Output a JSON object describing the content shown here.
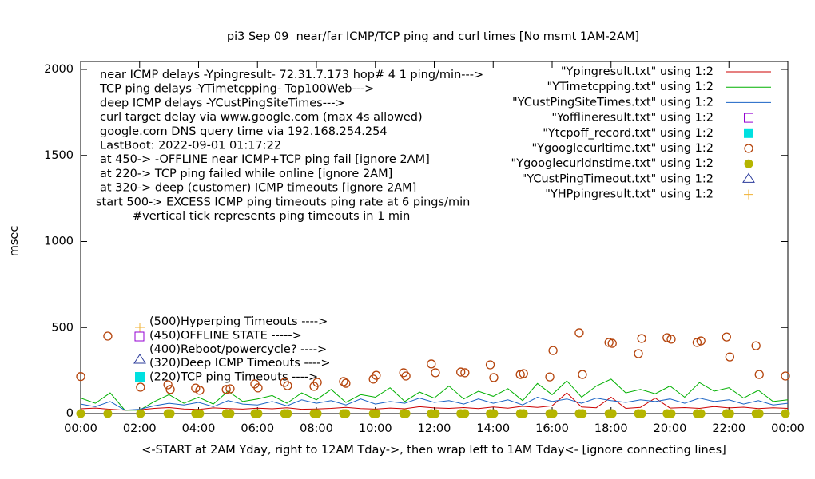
{
  "chart_data": {
    "type": "line",
    "title": "pi3 Sep 09  near/far ICMP/TCP ping and curl times [No msmt 1AM-2AM]",
    "y_label": "msec",
    "x_label": "<-START at 2AM Yday, right to 12AM Tday->, then wrap left to 1AM Tday<- [ignore connecting lines]",
    "xlim": [
      0,
      24
    ],
    "xticks": [
      {
        "value": 0,
        "label": "00:00"
      },
      {
        "value": 2,
        "label": "02:00"
      },
      {
        "value": 4,
        "label": "04:00"
      },
      {
        "value": 6,
        "label": "06:00"
      },
      {
        "value": 8,
        "label": "08:00"
      },
      {
        "value": 10,
        "label": "10:00"
      },
      {
        "value": 12,
        "label": "12:00"
      },
      {
        "value": 14,
        "label": "14:00"
      },
      {
        "value": 16,
        "label": "16:00"
      },
      {
        "value": 18,
        "label": "18:00"
      },
      {
        "value": 20,
        "label": "20:00"
      },
      {
        "value": 22,
        "label": "22:00"
      },
      {
        "value": 24,
        "label": "00:00"
      }
    ],
    "ylim": [
      0,
      2000
    ],
    "yticks": [
      0,
      500,
      1000,
      1500,
      2000
    ],
    "annotations": [
      "near ICMP delays -Ypingresult- 72.31.7.173 hop# 4 1 ping/min--->",
      "TCP ping delays -YTimetcpping- Top100Web--->",
      "deep ICMP delays -YCustPingSiteTimes--->",
      "curl target delay via www.google.com (max 4s allowed)",
      "google.com DNS query time via 192.168.254.254",
      "LastBoot: 2022-09-01 01:17:22",
      "at 450-> -OFFLINE near ICMP+TCP ping fail [ignore 2AM]",
      "at 220-> TCP ping failed while online [ignore 2AM]",
      "at 320-> deep (customer) ICMP timeouts [ignore 2AM]",
      "start 500-> EXCESS ICMP ping timeouts ping rate at 6 pings/min",
      "#vertical tick represents ping timeouts in 1 min"
    ],
    "key_notes": [
      "(500)Hyperping Timeouts ---->",
      "(450)OFFLINE STATE ----->",
      "(400)Reboot/powercycle? ---->",
      "(320)Deep ICMP Timeouts ---->",
      "(220)TCP ping Timeouts ---->"
    ],
    "x": [
      0,
      0.5,
      1,
      1.5,
      2,
      2.5,
      3,
      3.5,
      4,
      4.5,
      5,
      5.5,
      6,
      6.5,
      7,
      7.5,
      8,
      8.5,
      9,
      9.5,
      10,
      10.5,
      11,
      11.5,
      12,
      12.5,
      13,
      13.5,
      14,
      14.5,
      15,
      15.5,
      16,
      16.5,
      17,
      17.5,
      18,
      18.5,
      19,
      19.5,
      20,
      20.5,
      21,
      21.5,
      22,
      22.5,
      23,
      23.5,
      24
    ],
    "series": [
      {
        "name": "\"Ypingresult.txt\" using 1:2",
        "color": "#cc0000",
        "marker": "line",
        "values": [
          28,
          32,
          25,
          20,
          22,
          30,
          35,
          27,
          24,
          33,
          29,
          26,
          31,
          28,
          34,
          25,
          27,
          30,
          36,
          29,
          26,
          32,
          28,
          40,
          33,
          30,
          35,
          29,
          38,
          31,
          42,
          36,
          45,
          120,
          38,
          34,
          95,
          30,
          36,
          90,
          32,
          35,
          30,
          41,
          33,
          37,
          29,
          34,
          30
        ]
      },
      {
        "name": "\"YTimetcpping.txt\" using 1:2",
        "color": "#00b000",
        "marker": "line",
        "values": [
          90,
          60,
          120,
          20,
          20,
          70,
          110,
          60,
          95,
          55,
          130,
          70,
          85,
          105,
          60,
          120,
          80,
          140,
          65,
          110,
          95,
          150,
          70,
          125,
          90,
          160,
          85,
          130,
          100,
          145,
          75,
          175,
          110,
          190,
          95,
          160,
          200,
          120,
          140,
          115,
          160,
          95,
          180,
          130,
          150,
          90,
          135,
          70,
          80
        ]
      },
      {
        "name": "\"YCustPingSiteTimes.txt\" using 1:2",
        "color": "#1a63c4",
        "marker": "line",
        "values": [
          55,
          40,
          70,
          20,
          25,
          45,
          60,
          50,
          65,
          40,
          75,
          55,
          50,
          70,
          45,
          80,
          60,
          75,
          50,
          85,
          55,
          70,
          60,
          90,
          65,
          75,
          55,
          85,
          60,
          80,
          50,
          95,
          70,
          85,
          60,
          90,
          75,
          65,
          80,
          70,
          85,
          60,
          90,
          70,
          80,
          55,
          75,
          50,
          60
        ]
      },
      {
        "name": "\"Yofflineresult.txt\" using 1:2",
        "color": "#9400d3",
        "marker": "open-square",
        "x": [],
        "values": []
      },
      {
        "name": "\"Ytcpoff_record.txt\" using 1:2",
        "color": "#00e0e0",
        "marker": "filled-square",
        "x": [],
        "values": []
      },
      {
        "name": "\"Ygooglecurltime.txt\" using 1:2",
        "color": "#b5440c",
        "marker": "open-circle",
        "x": [
          0,
          0.92,
          2.03,
          2.96,
          3.04,
          3.9,
          4.04,
          4.94,
          5.07,
          5.91,
          6.02,
          6.92,
          7.02,
          7.92,
          8.03,
          8.92,
          9.0,
          9.93,
          10.03,
          10.96,
          11.04,
          11.9,
          12.04,
          12.9,
          13.04,
          13.9,
          14.02,
          14.92,
          15.03,
          15.92,
          16.03,
          16.92,
          17.03,
          17.93,
          18.04,
          18.93,
          19.04,
          19.9,
          20.04,
          20.92,
          21.05,
          21.92,
          22.03,
          22.92,
          23.03,
          23.92
        ],
        "values": [
          215,
          450,
          153,
          167,
          140,
          148,
          135,
          140,
          144,
          172,
          149,
          181,
          162,
          158,
          181,
          186,
          176,
          200,
          222,
          237,
          218,
          288,
          237,
          241,
          237,
          283,
          209,
          227,
          232,
          213,
          366,
          469,
          227,
          413,
          408,
          348,
          436,
          441,
          432,
          413,
          422,
          445,
          329,
          394,
          227,
          218
        ]
      },
      {
        "name": "\"Ygooglecurldnstime.txt\" using 1:2",
        "color": "#b5b500",
        "marker": "filled-circle",
        "x": [
          0,
          0.92,
          2.03,
          2.96,
          3.04,
          3.9,
          4.04,
          4.94,
          5.07,
          5.91,
          6.02,
          6.92,
          7.02,
          7.92,
          8.03,
          8.92,
          9.0,
          9.93,
          10.03,
          10.96,
          11.04,
          11.9,
          12.04,
          12.9,
          13.04,
          13.9,
          14.02,
          14.92,
          15.03,
          15.92,
          16.03,
          16.92,
          17.03,
          17.93,
          18.04,
          18.93,
          19.04,
          19.9,
          20.04,
          20.92,
          21.05,
          21.92,
          22.03,
          22.92,
          23.03,
          23.92
        ],
        "values": [
          0,
          0,
          0,
          0,
          0,
          0,
          0,
          0,
          0,
          0,
          0,
          0,
          0,
          0,
          0,
          0,
          0,
          0,
          0,
          0,
          0,
          0,
          0,
          0,
          0,
          0,
          0,
          0,
          0,
          0,
          0,
          0,
          0,
          0,
          0,
          0,
          0,
          0,
          0,
          0,
          0,
          0,
          0,
          0,
          0,
          0
        ]
      },
      {
        "name": "\"YCustPingTimeout.txt\" using 1:2",
        "color": "#2a3a9a",
        "marker": "open-triangle",
        "x": [],
        "values": []
      },
      {
        "name": "\"YHPpingresult.txt\" using 1:2",
        "color": "#f0b030",
        "marker": "plus",
        "x": [],
        "values": []
      }
    ]
  }
}
